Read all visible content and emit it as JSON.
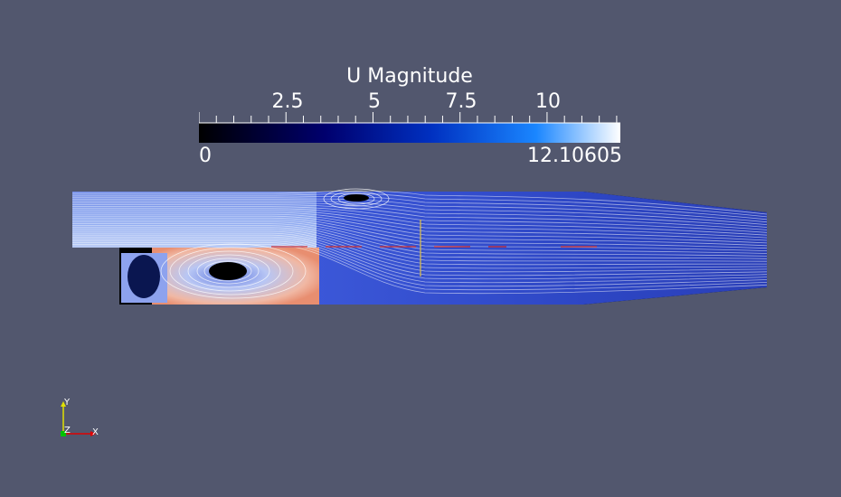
{
  "colorbar": {
    "title": "U Magnitude",
    "tick_labels": [
      "2.5",
      "5",
      "7.5",
      "10"
    ],
    "tick_values": [
      2.5,
      5,
      7.5,
      10
    ],
    "range_min": "0",
    "range_max": "12.10605",
    "range_min_value": 0,
    "range_max_value": 12.10605,
    "colormap": [
      "#000000",
      "#00006a",
      "#0036c8",
      "#1e8cff",
      "#ffffff"
    ]
  },
  "axes": {
    "x": "X",
    "y": "Y",
    "z": "Z",
    "x_color": "#e00000",
    "y_color": "#e0e000",
    "z_color": "#00c000"
  },
  "scene": {
    "background": "#52576e",
    "domain_fill": "#000000"
  }
}
